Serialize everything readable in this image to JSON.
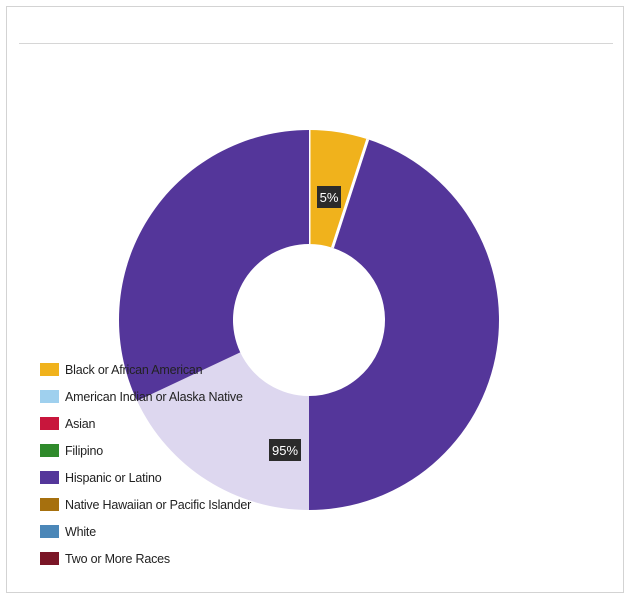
{
  "chart_data": {
    "type": "pie",
    "variant": "donut",
    "title": "",
    "categories": [
      "Black or African American",
      "American Indian or Alaska Native",
      "Asian",
      "Filipino",
      "Hispanic or Latino",
      "Native Hawaiian or Pacific Islander",
      "White",
      "Two or More Races"
    ],
    "values": [
      5,
      0,
      0,
      0,
      95,
      0,
      0,
      0
    ],
    "data_labels": [
      "5%",
      "",
      "",
      "",
      "95%",
      "",
      "",
      ""
    ],
    "colors": [
      "#f0b21c",
      "#9fd0ee",
      "#c8163c",
      "#2f8a2b",
      "#54369a",
      "#a6700e",
      "#4b87b8",
      "#7a1526"
    ],
    "legend_position": "bottom-left, overlapping chart",
    "lightened_slice_index": 4,
    "lightened_color": "#ddd7ef",
    "label_style": {
      "background": "#2b2b2b",
      "text_color": "#ffffff"
    }
  }
}
